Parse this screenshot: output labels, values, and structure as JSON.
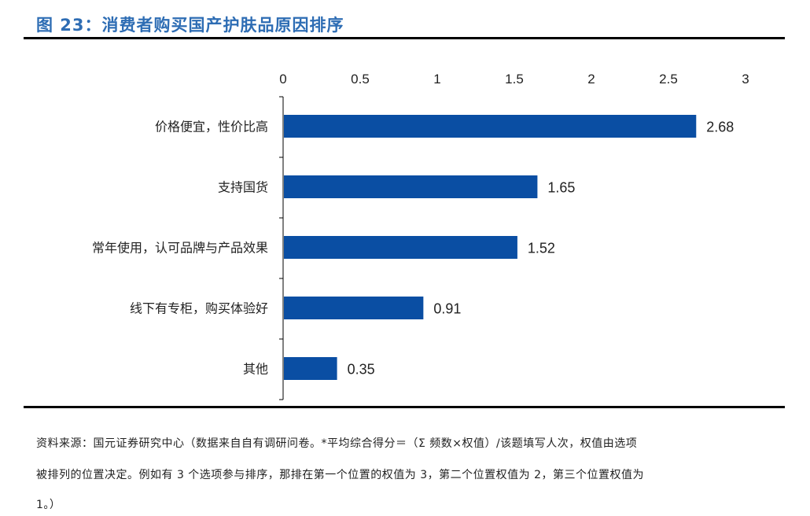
{
  "title": "图 23：消费者购买国产护肤品原因排序",
  "chart_data": {
    "type": "bar",
    "orientation": "horizontal",
    "categories": [
      "价格便宜，性价比高",
      "支持国货",
      "常年使用，认可品牌与产品效果",
      "线下有专柜，购买体验好",
      "其他"
    ],
    "values": [
      2.68,
      1.65,
      1.52,
      0.91,
      0.35
    ],
    "data_labels": [
      "2.68",
      "1.65",
      "1.52",
      "0.91",
      "0.35"
    ],
    "xlim": [
      0,
      3
    ],
    "x_ticks": [
      "0",
      "0.5",
      "1",
      "1.5",
      "2",
      "2.5",
      "3"
    ],
    "x_axis_position": "top",
    "grid": false,
    "legend": "none",
    "bar_color": "#0a4ea3"
  },
  "footer": {
    "line1": "资料来源：国元证券研究中心（数据来自自有调研问卷。*平均综合得分＝（Σ 频数×权值）/该题填写人次，权值由选项",
    "line2": "被排列的位置决定。例如有 3 个选项参与排序，那排在第一个位置的权值为 3，第二个位置权值为 2，第三个位置权值为",
    "line3": "1。）"
  }
}
